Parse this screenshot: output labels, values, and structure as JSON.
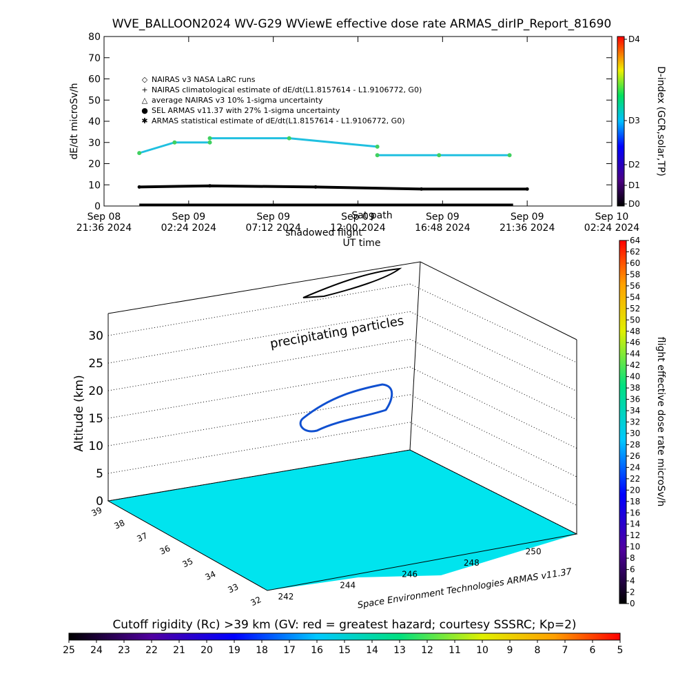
{
  "chart_data": [
    {
      "type": "line",
      "title": "WVE_BALLOON2024 WV-G29 WViewE effective dose rate ARMAS_dirIP_Report_81690",
      "ylabel": "dE/dt microSv/h",
      "xlabel": "UT time",
      "ylim": [
        0,
        80
      ],
      "yticks": [
        "0",
        "10",
        "20",
        "30",
        "40",
        "50",
        "60",
        "70",
        "80"
      ],
      "xticks": [
        {
          "line1": "Sep 08",
          "line2": "21:36 2024"
        },
        {
          "line1": "Sep 09",
          "line2": "02:24 2024"
        },
        {
          "line1": "Sep 09",
          "line2": "07:12 2024"
        },
        {
          "line1": "Sep 09",
          "line2": "12:00 2024"
        },
        {
          "line1": "Sep 09",
          "line2": "16:48 2024"
        },
        {
          "line1": "Sep 09",
          "line2": "21:36 2024"
        },
        {
          "line1": "Sep 10",
          "line2": "02:24 2024"
        }
      ],
      "legend": [
        {
          "symbol": "◇",
          "text": "NAIRAS v3 NASA LaRC runs"
        },
        {
          "symbol": "+",
          "text": "NAIRAS climatological estimate of dE/dt(L1.8157614 - L1.9106772, G0)"
        },
        {
          "symbol": "△",
          "text": "average NAIRAS v3 10% 1-sigma uncertainty"
        },
        {
          "symbol": "●",
          "text": "SEL ARMAS v11.37 with 27% 1-sigma uncertainty"
        },
        {
          "symbol": "✱",
          "text": "ARMAS statistical estimate of dE/dt(L1.8157614 - L1.9106772, G0)"
        }
      ],
      "overlay_labels": [
        "Sat path",
        "shadowed flight"
      ],
      "series": [
        {
          "segment": "early",
          "x_hours": [
            2.0,
            4.0,
            6.0
          ],
          "y": [
            25,
            30,
            30
          ]
        },
        {
          "segment": "middle",
          "x_hours": [
            6.0,
            10.5,
            15.5
          ],
          "y": [
            32,
            32,
            28
          ]
        },
        {
          "segment": "late",
          "x_hours": [
            15.5,
            19.0,
            23.0
          ],
          "y": [
            24,
            24,
            24
          ]
        },
        {
          "segment": "baseline",
          "x_hours": [
            2.0,
            6.0,
            12.0,
            18.0,
            24.0
          ],
          "y": [
            9,
            9.5,
            9,
            8,
            8
          ]
        }
      ],
      "right_colorbar": {
        "label": "D-index (GCR,solar,TP)",
        "ticks": [
          "D4",
          "D3",
          "D2",
          "D1",
          "D0"
        ]
      }
    },
    {
      "type": "scatter",
      "zlabel": "Altitude (km)",
      "zticks": [
        "0",
        "5",
        "10",
        "15",
        "20",
        "25",
        "30"
      ],
      "annotation": "precipitating particles",
      "lat_ticks": [
        "32",
        "33",
        "34",
        "35",
        "36",
        "37",
        "38",
        "39"
      ],
      "lon_ticks": [
        "242",
        "244",
        "246",
        "248",
        "250"
      ],
      "credit": "Space Environment Technologies ARMAS v11.37",
      "right_colorbar": {
        "label": "flight effective dose rate microSv/h",
        "ticks": [
          "0",
          "2",
          "4",
          "6",
          "8",
          "10",
          "12",
          "14",
          "16",
          "18",
          "20",
          "22",
          "24",
          "26",
          "28",
          "30",
          "32",
          "34",
          "36",
          "38",
          "40",
          "42",
          "44",
          "46",
          "48",
          "50",
          "52",
          "54",
          "56",
          "58",
          "60",
          "62",
          "64"
        ]
      },
      "bottom_colorbar": {
        "title": "Cutoff rigidity (Rc) >39 km (GV: red = greatest hazard; courtesy SSSRC; Kp=2)",
        "ticks": [
          "25",
          "24",
          "23",
          "22",
          "21",
          "20",
          "19",
          "18",
          "17",
          "16",
          "15",
          "14",
          "13",
          "12",
          "11",
          "10",
          "9",
          "8",
          "7",
          "6",
          "5"
        ]
      }
    }
  ]
}
